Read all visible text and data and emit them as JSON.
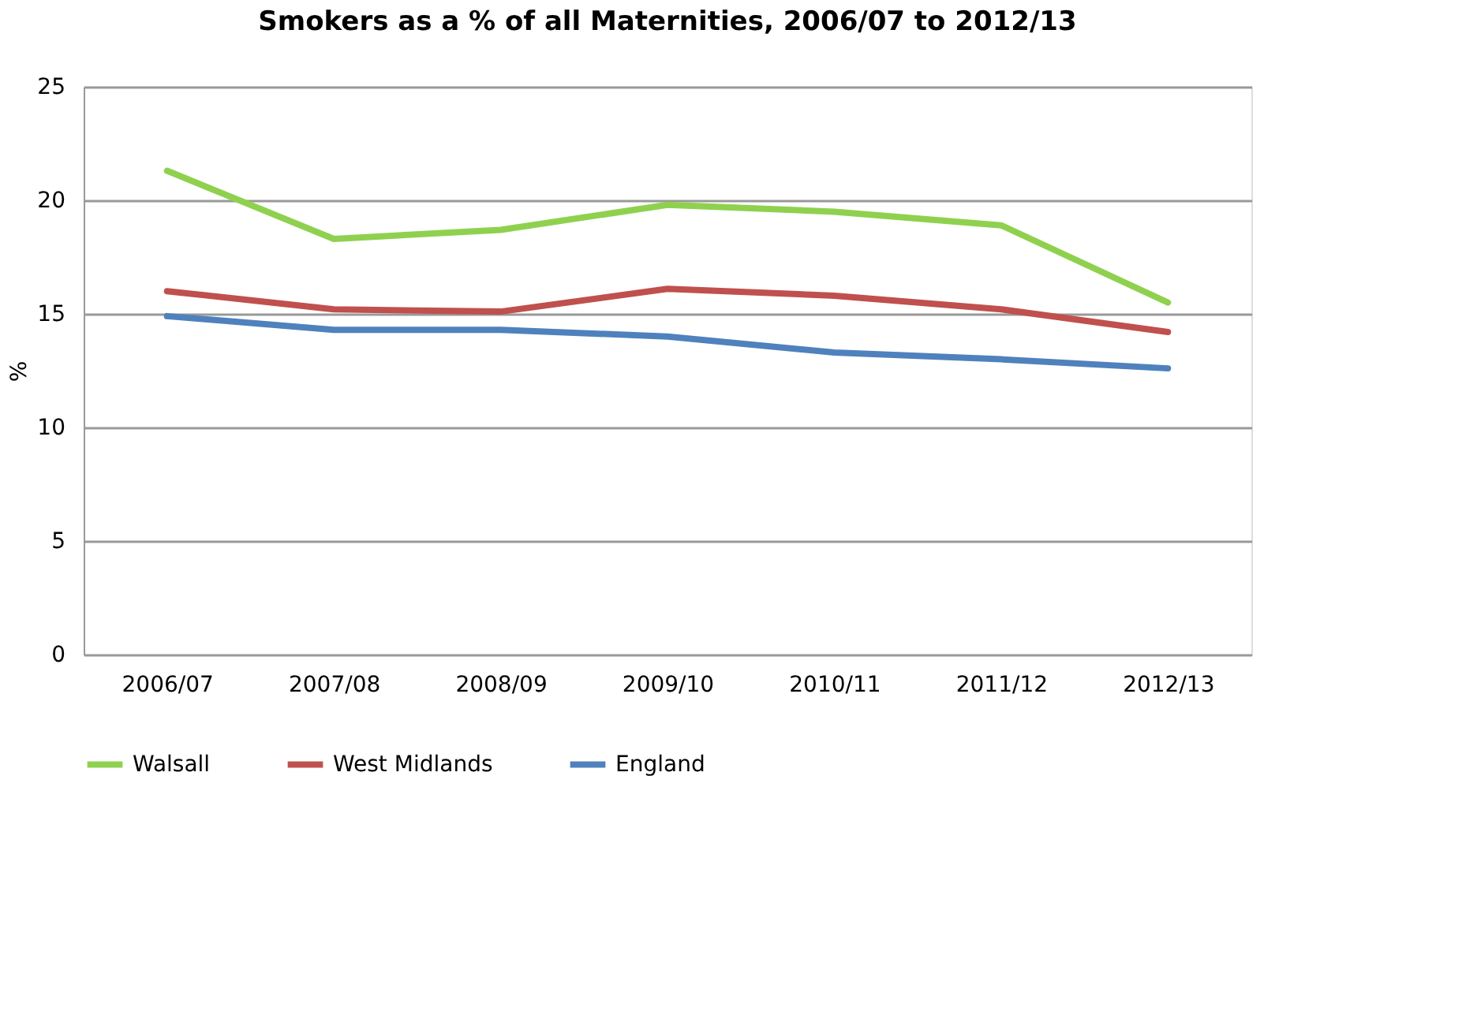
{
  "chart_data": {
    "type": "line",
    "title": "Smokers as a % of all Maternities, 2006/07 to 2012/13",
    "ylabel": "%",
    "categories": [
      "2006/07",
      "2007/08",
      "2008/09",
      "2009/10",
      "2010/11",
      "2011/12",
      "2012/13"
    ],
    "series": [
      {
        "name": "Walsall",
        "color": "#8fd14f",
        "values": [
          21.3,
          18.3,
          18.7,
          19.8,
          19.5,
          18.9,
          15.5
        ]
      },
      {
        "name": "West Midlands",
        "color": "#c0504d",
        "values": [
          16.0,
          15.2,
          15.1,
          16.1,
          15.8,
          15.2,
          14.2
        ]
      },
      {
        "name": "England",
        "color": "#4f81bd",
        "values": [
          14.9,
          14.3,
          14.3,
          14.0,
          13.3,
          13.0,
          12.6
        ]
      }
    ],
    "ylim": [
      0,
      25
    ],
    "yticks": [
      0,
      5,
      10,
      15,
      20,
      25
    ],
    "grid": "y",
    "legend": "bottom",
    "marker": "none",
    "line_style": "solid"
  }
}
